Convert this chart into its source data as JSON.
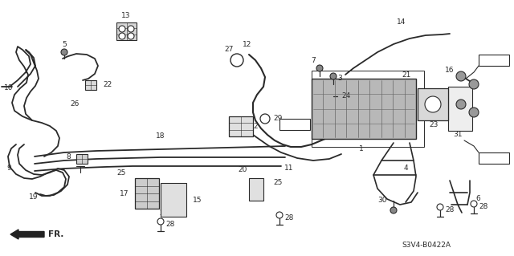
{
  "bg_color": "#ffffff",
  "lc": "#2a2a2a",
  "diagram_code": "S3V4-B0422A",
  "figsize": [
    6.4,
    3.19
  ],
  "dpi": 100
}
